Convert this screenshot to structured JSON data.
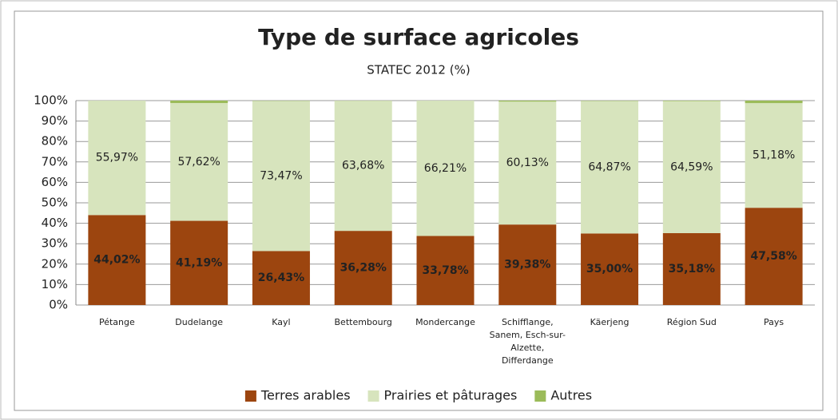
{
  "chart_data": {
    "type": "stacked_bar",
    "title": "Type de surface agricoles",
    "subtitle": "STATEC 2012 (%)",
    "categories": [
      "Pétange",
      "Dudelange",
      "Kayl",
      "Bettembourg",
      "Mondercange",
      "Schifflange, Sanem, Esch-sur-Alzette, Differdange",
      "Käerjeng",
      "Région Sud",
      "Pays"
    ],
    "series": [
      {
        "name": "Terres arables",
        "color": "#9c450f",
        "values": [
          44.02,
          41.19,
          26.43,
          36.28,
          33.78,
          39.38,
          35.0,
          35.18,
          47.58
        ],
        "value_labels": [
          "44,02%",
          "41,19%",
          "26,43%",
          "36,28%",
          "33,78%",
          "39,38%",
          "35,00%",
          "35,18%",
          "47,58%"
        ]
      },
      {
        "name": "Prairies et pâturages",
        "color": "#d7e4bd",
        "values": [
          55.97,
          57.62,
          73.47,
          63.68,
          66.21,
          60.13,
          64.87,
          64.59,
          51.18
        ],
        "value_labels": [
          "55,97%",
          "57,62%",
          "73,47%",
          "63,68%",
          "66,21%",
          "60,13%",
          "64,87%",
          "64,59%",
          "51,18%"
        ]
      },
      {
        "name": "Autres",
        "color": "#9bbb59",
        "values": [
          0.01,
          1.19,
          0.1,
          0.04,
          0.01,
          0.49,
          0.13,
          0.23,
          1.24
        ]
      }
    ],
    "ylim": [
      0,
      100
    ],
    "yticks": [
      {
        "value": 0,
        "label": "0%"
      },
      {
        "value": 10,
        "label": "10%"
      },
      {
        "value": 20,
        "label": "20%"
      },
      {
        "value": 30,
        "label": "30%"
      },
      {
        "value": 40,
        "label": "40%"
      },
      {
        "value": 50,
        "label": "50%"
      },
      {
        "value": 60,
        "label": "60%"
      },
      {
        "value": 70,
        "label": "70%"
      },
      {
        "value": 80,
        "label": "80%"
      },
      {
        "value": 90,
        "label": "90%"
      },
      {
        "value": 100,
        "label": "100%"
      }
    ],
    "grid": true,
    "legend": "bottom"
  }
}
